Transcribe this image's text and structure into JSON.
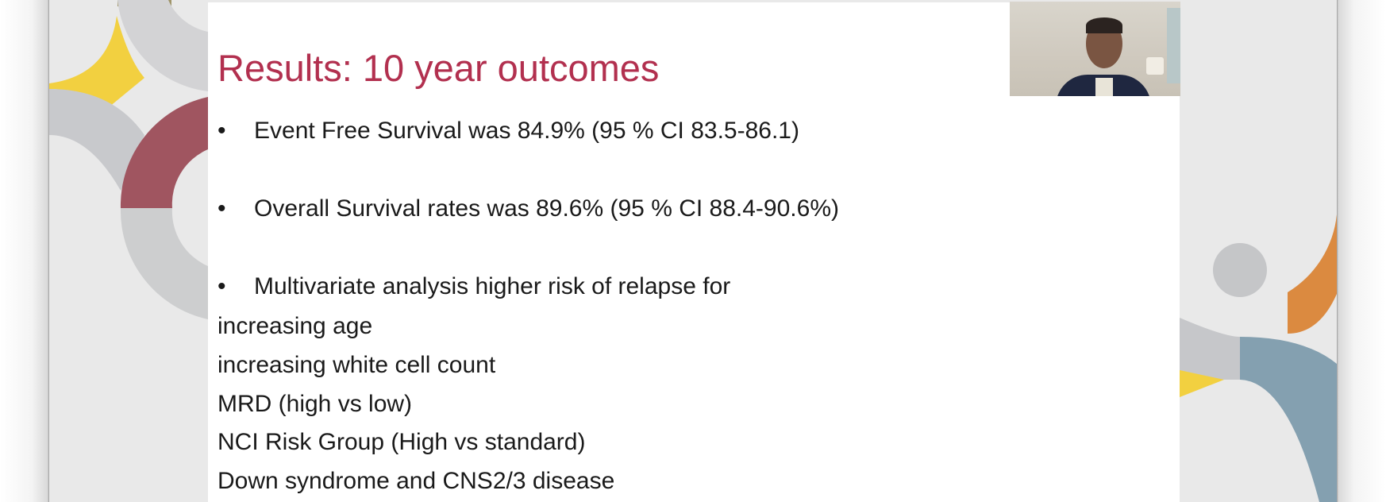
{
  "slide": {
    "title": "Results: 10 year outcomes",
    "bullets": [
      "Event Free Survival was 84.9% (95 % CI 83.5-86.1)",
      "Overall Survival rates was 89.6% (95 % CI 88.4-90.6%)",
      "Multivariate analysis higher risk of relapse for"
    ],
    "bullet_char": "•",
    "sub_lines": [
      "increasing age",
      "increasing white cell count",
      "MRD (high vs low)",
      "NCI Risk Group (High vs standard)",
      "Down syndrome and CNS2/3 disease"
    ]
  },
  "colors": {
    "title": "#b2304f",
    "yellow": "#f2d040",
    "maroon": "#a05560",
    "orange": "#db8a40",
    "steel_blue": "#84a0b0",
    "gray_arc": "#c9cacd",
    "olive": "#a0956a"
  },
  "webcam": {
    "icon": "presenter-video-feed"
  }
}
